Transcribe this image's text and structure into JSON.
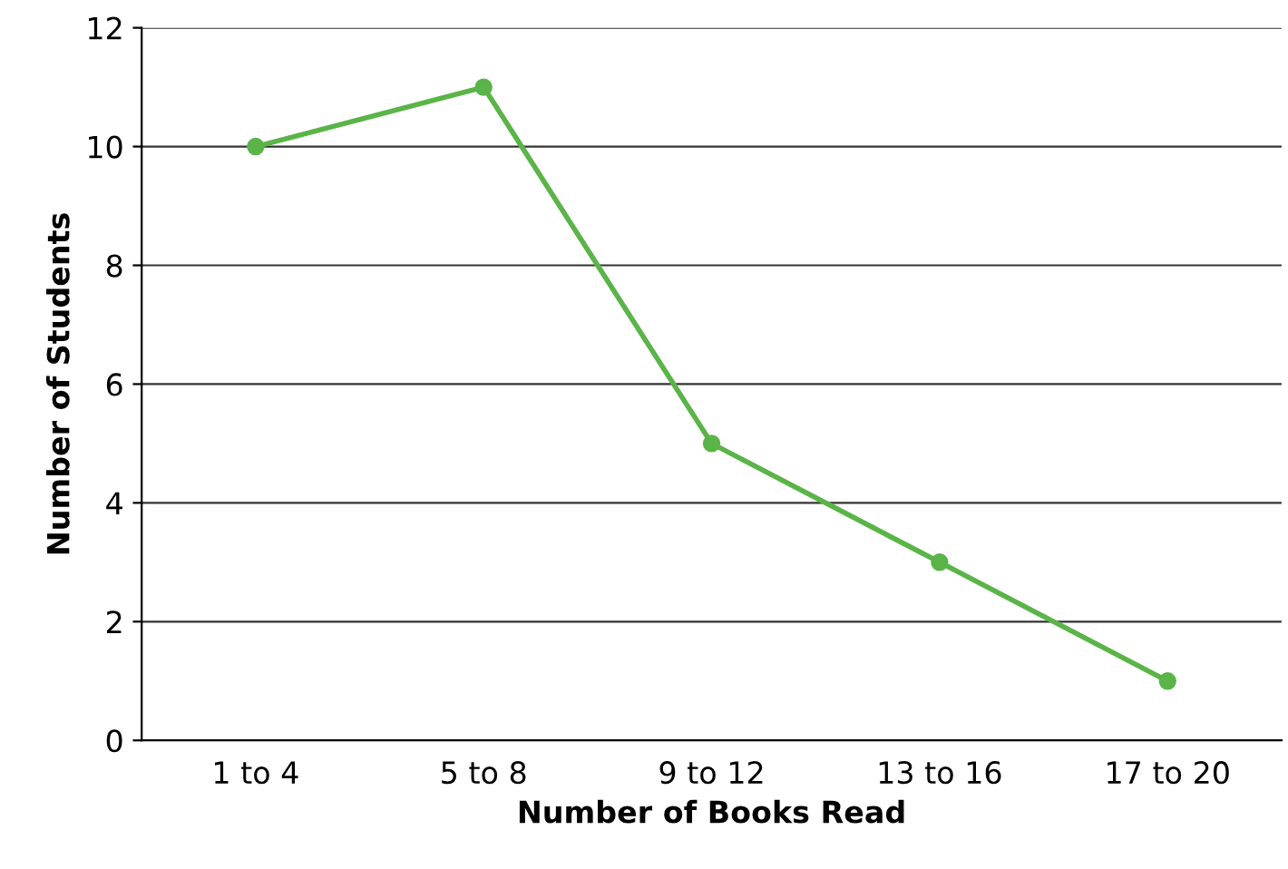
{
  "chart_data": {
    "type": "line",
    "xlabel": "Number of Books Read",
    "ylabel": "Number of Students",
    "categories": [
      "1 to 4",
      "5 to 8",
      "9 to 12",
      "13 to 16",
      "17 to 20"
    ],
    "series": [
      {
        "color": "#5ab448",
        "values": [
          10,
          11,
          5,
          3,
          1
        ]
      }
    ],
    "ylim": [
      0,
      12
    ],
    "yticks": [
      0,
      2,
      4,
      6,
      8,
      10,
      12
    ],
    "grid": "y",
    "marker": "circle",
    "line_style": "solid"
  }
}
